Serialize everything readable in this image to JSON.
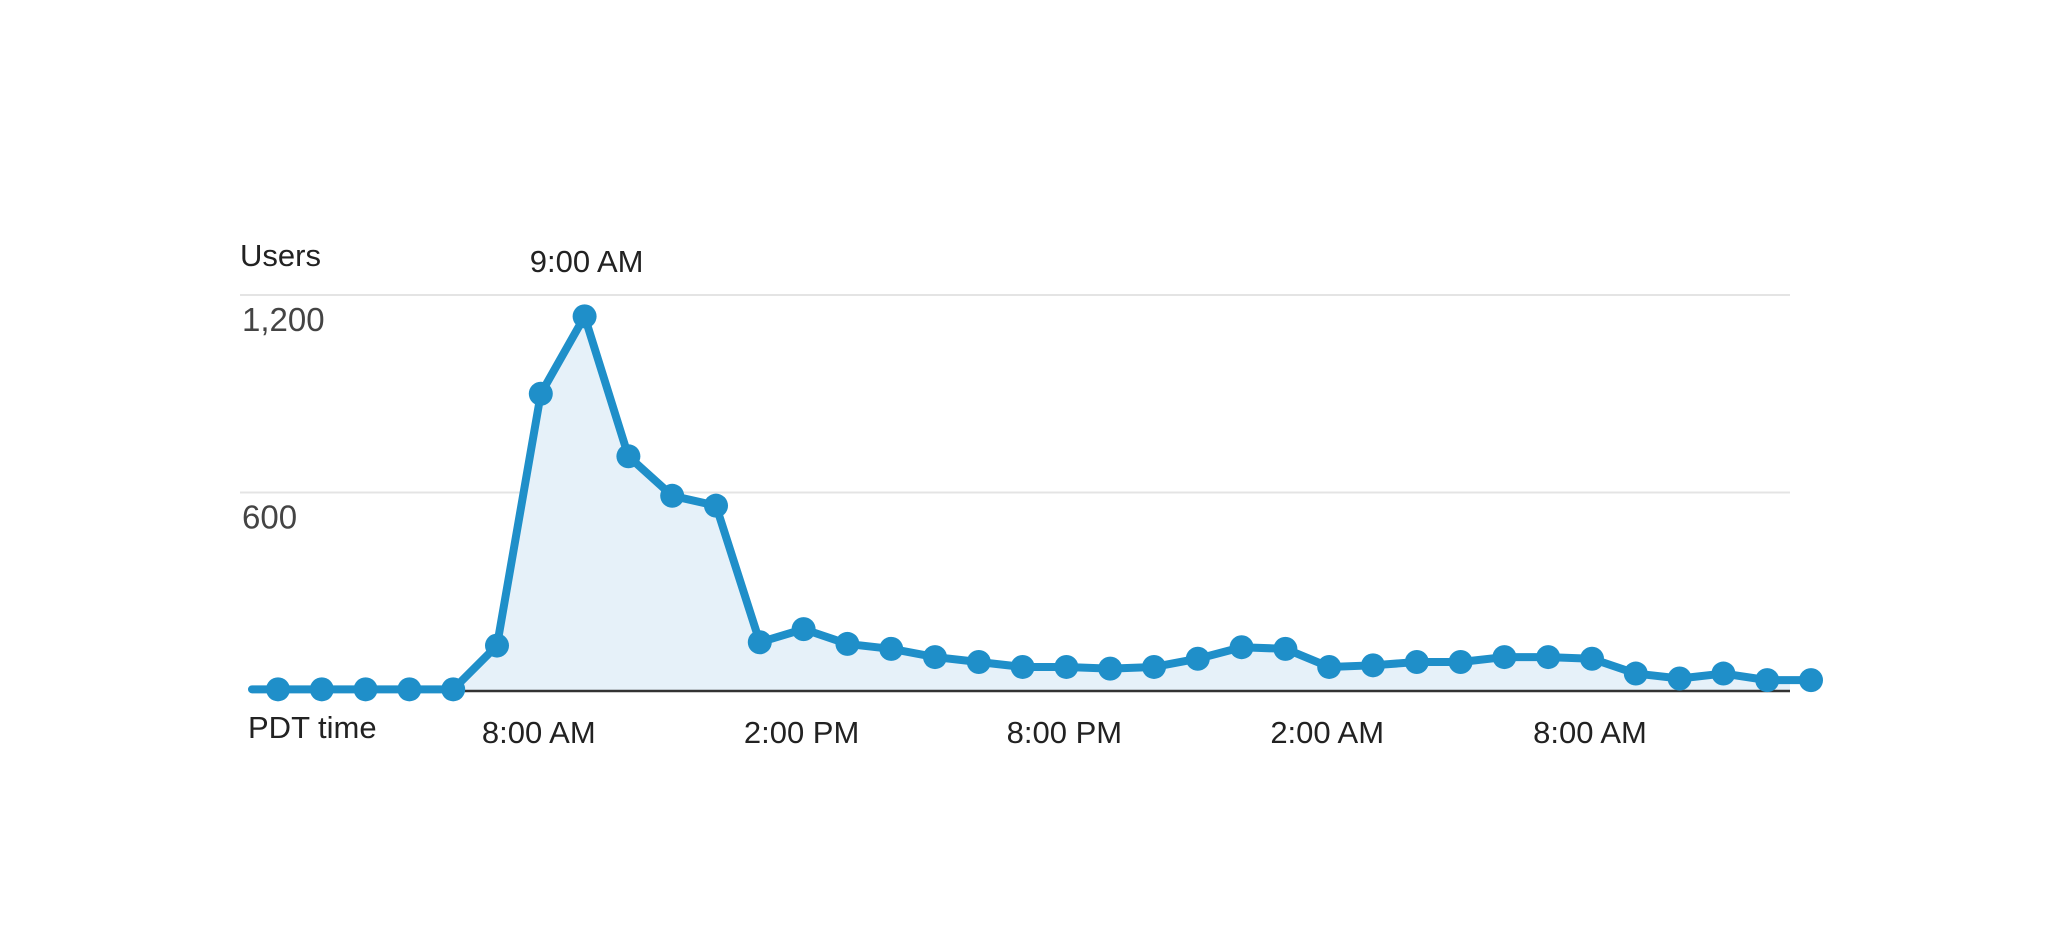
{
  "chart_data": {
    "type": "area",
    "ylabel": "Users",
    "xlabel": "PDT time",
    "peak_label": "9:00 AM",
    "ylim": [
      0,
      1200
    ],
    "y_ticks": [
      {
        "value": 600,
        "label": "600"
      },
      {
        "value": 1200,
        "label": "1,200"
      }
    ],
    "x_ticks": [
      {
        "index": 6,
        "label": "8:00 AM"
      },
      {
        "index": 12,
        "label": "2:00 PM"
      },
      {
        "index": 18,
        "label": "8:00 PM"
      },
      {
        "index": 24,
        "label": "2:00 AM"
      },
      {
        "index": 30,
        "label": "8:00 AM"
      }
    ],
    "series": [
      {
        "values": [
          2,
          2,
          2,
          2,
          2,
          135,
          900,
          1135,
          710,
          590,
          560,
          145,
          185,
          140,
          125,
          100,
          85,
          70,
          70,
          65,
          70,
          95,
          130,
          125,
          70,
          75,
          85,
          85,
          100,
          100,
          95,
          50,
          35,
          50,
          30,
          30
        ]
      }
    ],
    "grid": true,
    "colors": {
      "line": "#1f8fc9",
      "fill": "#e6f1f9",
      "grid": "#e4e4e4",
      "baseline": "#333333"
    }
  }
}
